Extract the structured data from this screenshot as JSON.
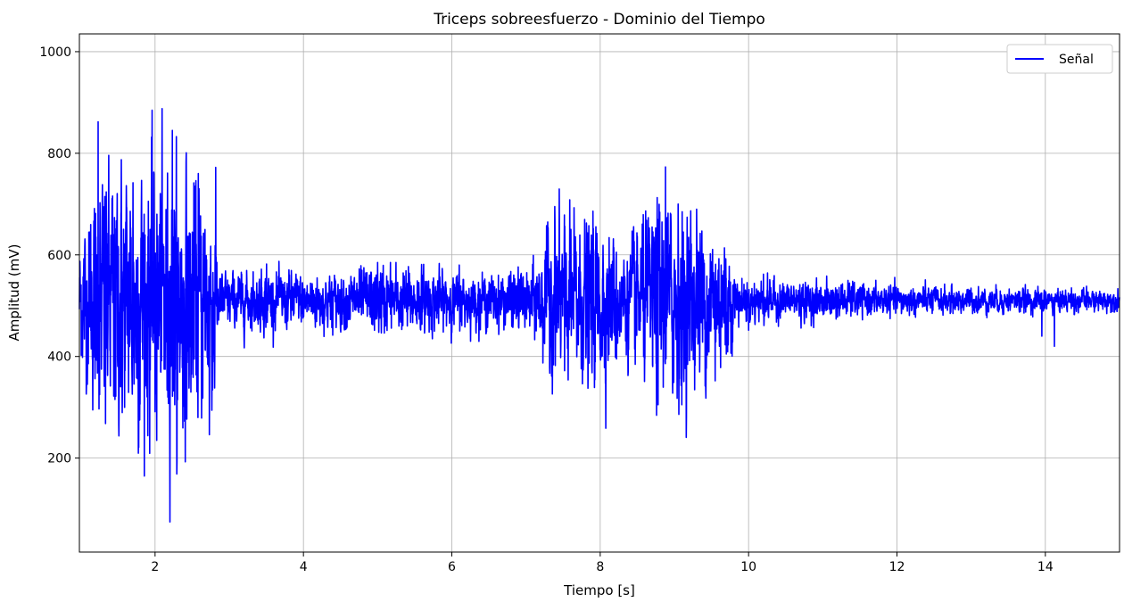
{
  "chart_data": {
    "type": "line",
    "title": "Triceps sobreesfuerzo - Dominio del Tiempo",
    "xlabel": "Tiempo [s]",
    "ylabel": "Amplitud (mV)",
    "xlim": [
      0.98,
      15.0
    ],
    "ylim": [
      15,
      1035
    ],
    "xticks": [
      2,
      4,
      6,
      8,
      10,
      12,
      14
    ],
    "yticks": [
      200,
      400,
      600,
      800,
      1000
    ],
    "grid": true,
    "legend_position": "top-right",
    "series": [
      {
        "name": "Señal",
        "color": "#0000ff",
        "baseline": 510,
        "sample_rate_hz": 400,
        "amplitude_envelope": [
          {
            "t": 0.98,
            "a": 65
          },
          {
            "t": 1.3,
            "a": 120
          },
          {
            "t": 2.0,
            "a": 130
          },
          {
            "t": 2.5,
            "a": 120
          },
          {
            "t": 2.82,
            "a": 95
          },
          {
            "t": 2.86,
            "a": 28
          },
          {
            "t": 4.5,
            "a": 26
          },
          {
            "t": 5.0,
            "a": 34
          },
          {
            "t": 6.5,
            "a": 24
          },
          {
            "t": 7.1,
            "a": 32
          },
          {
            "t": 7.3,
            "a": 75
          },
          {
            "t": 8.0,
            "a": 80
          },
          {
            "t": 8.3,
            "a": 50
          },
          {
            "t": 8.8,
            "a": 95
          },
          {
            "t": 9.3,
            "a": 80
          },
          {
            "t": 9.7,
            "a": 65
          },
          {
            "t": 9.85,
            "a": 22
          },
          {
            "t": 12.0,
            "a": 14
          },
          {
            "t": 15.0,
            "a": 10
          }
        ],
        "peaks": [
          {
            "x": 1.12,
            "y": 645
          },
          {
            "x": 1.23,
            "y": 862
          },
          {
            "x": 1.25,
            "y": 325
          },
          {
            "x": 1.32,
            "y": 715
          },
          {
            "x": 1.33,
            "y": 268
          },
          {
            "x": 1.42,
            "y": 675
          },
          {
            "x": 1.44,
            "y": 322
          },
          {
            "x": 1.7,
            "y": 742
          },
          {
            "x": 1.75,
            "y": 358
          },
          {
            "x": 1.79,
            "y": 275
          },
          {
            "x": 1.85,
            "y": 680
          },
          {
            "x": 1.93,
            "y": 650
          },
          {
            "x": 2.02,
            "y": 235
          },
          {
            "x": 2.06,
            "y": 660
          },
          {
            "x": 2.12,
            "y": 375
          },
          {
            "x": 2.17,
            "y": 320
          },
          {
            "x": 2.23,
            "y": 845
          },
          {
            "x": 2.3,
            "y": 315
          },
          {
            "x": 2.38,
            "y": 302
          },
          {
            "x": 2.48,
            "y": 330
          },
          {
            "x": 2.58,
            "y": 760
          },
          {
            "x": 2.67,
            "y": 650
          },
          {
            "x": 2.73,
            "y": 246
          },
          {
            "x": 2.8,
            "y": 338
          },
          {
            "x": 2.82,
            "y": 595
          },
          {
            "x": 3.5,
            "y": 582
          },
          {
            "x": 4.38,
            "y": 457
          },
          {
            "x": 5.0,
            "y": 585
          },
          {
            "x": 5.4,
            "y": 460
          },
          {
            "x": 6.1,
            "y": 580
          },
          {
            "x": 7.05,
            "y": 460
          },
          {
            "x": 7.3,
            "y": 600
          },
          {
            "x": 7.45,
            "y": 660
          },
          {
            "x": 7.52,
            "y": 372
          },
          {
            "x": 7.65,
            "y": 640
          },
          {
            "x": 7.85,
            "y": 387
          },
          {
            "x": 8.12,
            "y": 634
          },
          {
            "x": 8.22,
            "y": 395
          },
          {
            "x": 8.7,
            "y": 655
          },
          {
            "x": 8.78,
            "y": 305
          },
          {
            "x": 8.88,
            "y": 773
          },
          {
            "x": 9.05,
            "y": 700
          },
          {
            "x": 9.1,
            "y": 305
          },
          {
            "x": 9.3,
            "y": 690
          },
          {
            "x": 9.55,
            "y": 352
          },
          {
            "x": 9.63,
            "y": 580
          },
          {
            "x": 9.7,
            "y": 405
          },
          {
            "x": 10.2,
            "y": 562
          },
          {
            "x": 11.4,
            "y": 548
          },
          {
            "x": 13.95,
            "y": 440
          },
          {
            "x": 14.12,
            "y": 420
          },
          {
            "x": 14.35,
            "y": 535
          }
        ]
      }
    ]
  }
}
